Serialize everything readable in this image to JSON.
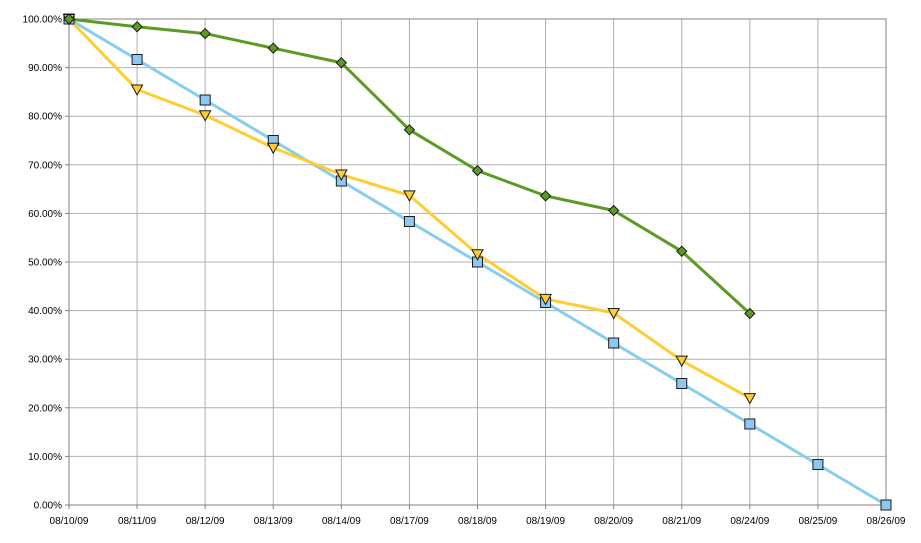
{
  "chart_data": {
    "type": "line",
    "title": "",
    "xlabel": "",
    "ylabel": "",
    "categories": [
      "08/10/09",
      "08/11/09",
      "08/12/09",
      "08/13/09",
      "08/14/09",
      "08/17/09",
      "08/18/09",
      "08/19/09",
      "08/20/09",
      "08/21/09",
      "08/24/09",
      "08/25/09",
      "08/26/09"
    ],
    "y_tick_labels": [
      "0.00%",
      "10.00%",
      "20.00%",
      "30.00%",
      "40.00%",
      "50.00%",
      "60.00%",
      "70.00%",
      "80.00%",
      "90.00%",
      "100.00%"
    ],
    "ylim": [
      0,
      100
    ],
    "grid": true,
    "legend": "none",
    "series": [
      {
        "color": "#88CCEE",
        "marker": "square",
        "marker_fill": "#8EC8F2",
        "values": [
          100,
          91.67,
          83.33,
          75,
          66.67,
          58.33,
          50,
          41.67,
          33.33,
          25,
          16.67,
          8.33,
          0
        ]
      },
      {
        "color": "#FFCC33",
        "marker": "triangle-down",
        "marker_fill": "#FFCC33",
        "values": [
          100,
          85.5,
          80.2,
          73.5,
          68,
          63.7,
          51.6,
          42.4,
          39.5,
          29.7,
          22,
          null,
          null
        ]
      },
      {
        "color": "#5B9A24",
        "marker": "diamond",
        "marker_fill": "#5B9A24",
        "values": [
          100,
          98.4,
          97,
          94,
          91,
          77.2,
          68.8,
          63.6,
          60.6,
          52.2,
          39.4,
          null,
          null
        ]
      }
    ]
  }
}
